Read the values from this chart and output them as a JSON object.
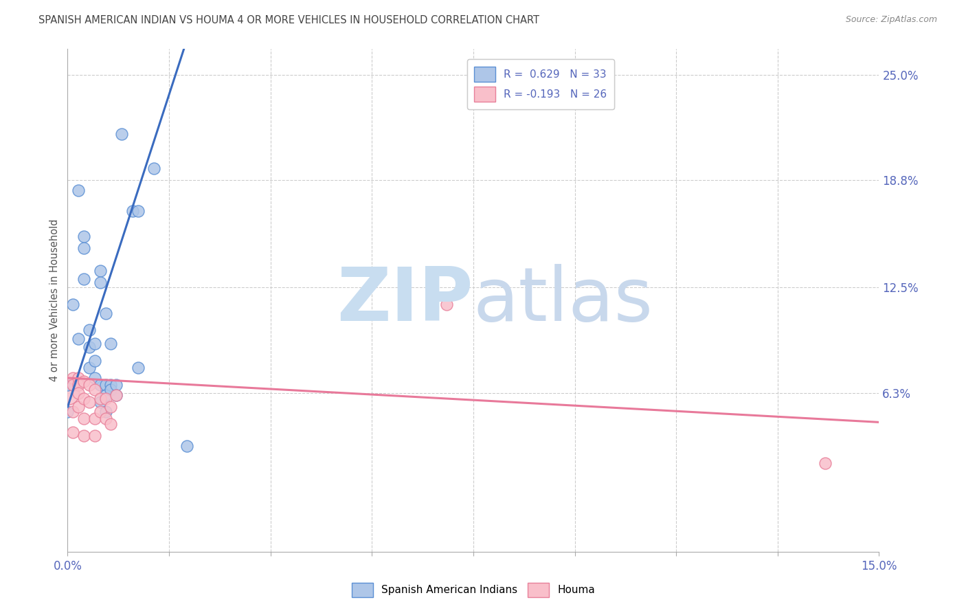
{
  "title": "SPANISH AMERICAN INDIAN VS HOUMA 4 OR MORE VEHICLES IN HOUSEHOLD CORRELATION CHART",
  "source": "Source: ZipAtlas.com",
  "ylabel": "4 or more Vehicles in Household",
  "ylabel_right_labels": [
    "25.0%",
    "18.8%",
    "12.5%",
    "6.3%"
  ],
  "ylabel_right_values": [
    0.25,
    0.188,
    0.125,
    0.063
  ],
  "xmin": 0.0,
  "xmax": 0.15,
  "ymin": -0.03,
  "ymax": 0.265,
  "blue_scatter": [
    [
      0.001,
      0.115
    ],
    [
      0.002,
      0.182
    ],
    [
      0.002,
      0.095
    ],
    [
      0.003,
      0.155
    ],
    [
      0.003,
      0.148
    ],
    [
      0.003,
      0.13
    ],
    [
      0.004,
      0.1
    ],
    [
      0.004,
      0.09
    ],
    [
      0.004,
      0.078
    ],
    [
      0.005,
      0.092
    ],
    [
      0.005,
      0.082
    ],
    [
      0.005,
      0.072
    ],
    [
      0.006,
      0.135
    ],
    [
      0.006,
      0.128
    ],
    [
      0.006,
      0.068
    ],
    [
      0.006,
      0.058
    ],
    [
      0.007,
      0.11
    ],
    [
      0.007,
      0.068
    ],
    [
      0.007,
      0.062
    ],
    [
      0.007,
      0.052
    ],
    [
      0.008,
      0.092
    ],
    [
      0.008,
      0.068
    ],
    [
      0.008,
      0.065
    ],
    [
      0.009,
      0.068
    ],
    [
      0.009,
      0.062
    ],
    [
      0.01,
      0.215
    ],
    [
      0.012,
      0.17
    ],
    [
      0.013,
      0.17
    ],
    [
      0.013,
      0.078
    ],
    [
      0.016,
      0.195
    ],
    [
      0.022,
      0.032
    ],
    [
      0.0,
      0.068
    ],
    [
      0.0,
      0.052
    ]
  ],
  "pink_scatter": [
    [
      0.001,
      0.072
    ],
    [
      0.001,
      0.068
    ],
    [
      0.001,
      0.052
    ],
    [
      0.001,
      0.04
    ],
    [
      0.002,
      0.072
    ],
    [
      0.002,
      0.068
    ],
    [
      0.002,
      0.063
    ],
    [
      0.002,
      0.055
    ],
    [
      0.003,
      0.07
    ],
    [
      0.003,
      0.06
    ],
    [
      0.003,
      0.048
    ],
    [
      0.003,
      0.038
    ],
    [
      0.004,
      0.068
    ],
    [
      0.004,
      0.058
    ],
    [
      0.005,
      0.065
    ],
    [
      0.005,
      0.048
    ],
    [
      0.005,
      0.038
    ],
    [
      0.006,
      0.06
    ],
    [
      0.006,
      0.052
    ],
    [
      0.007,
      0.06
    ],
    [
      0.007,
      0.048
    ],
    [
      0.008,
      0.055
    ],
    [
      0.008,
      0.045
    ],
    [
      0.009,
      0.062
    ],
    [
      0.07,
      0.115
    ],
    [
      0.14,
      0.022
    ]
  ],
  "pink_big_circle": [
    0.0,
    0.063
  ],
  "blue_line": [
    [
      0.0,
      0.055
    ],
    [
      0.022,
      0.27
    ]
  ],
  "pink_line": [
    [
      0.0,
      0.072
    ],
    [
      0.15,
      0.046
    ]
  ],
  "blue_color": "#aec6e8",
  "blue_edge_color": "#5b8fd4",
  "pink_color": "#f9bfca",
  "pink_edge_color": "#e8809a",
  "blue_line_color": "#3a6bbf",
  "pink_line_color": "#e8799a",
  "grid_color": "#cccccc",
  "bg_color": "#ffffff",
  "title_color": "#444444",
  "source_color": "#888888",
  "axis_label_color": "#5566bb",
  "ylabel_color": "#555555"
}
